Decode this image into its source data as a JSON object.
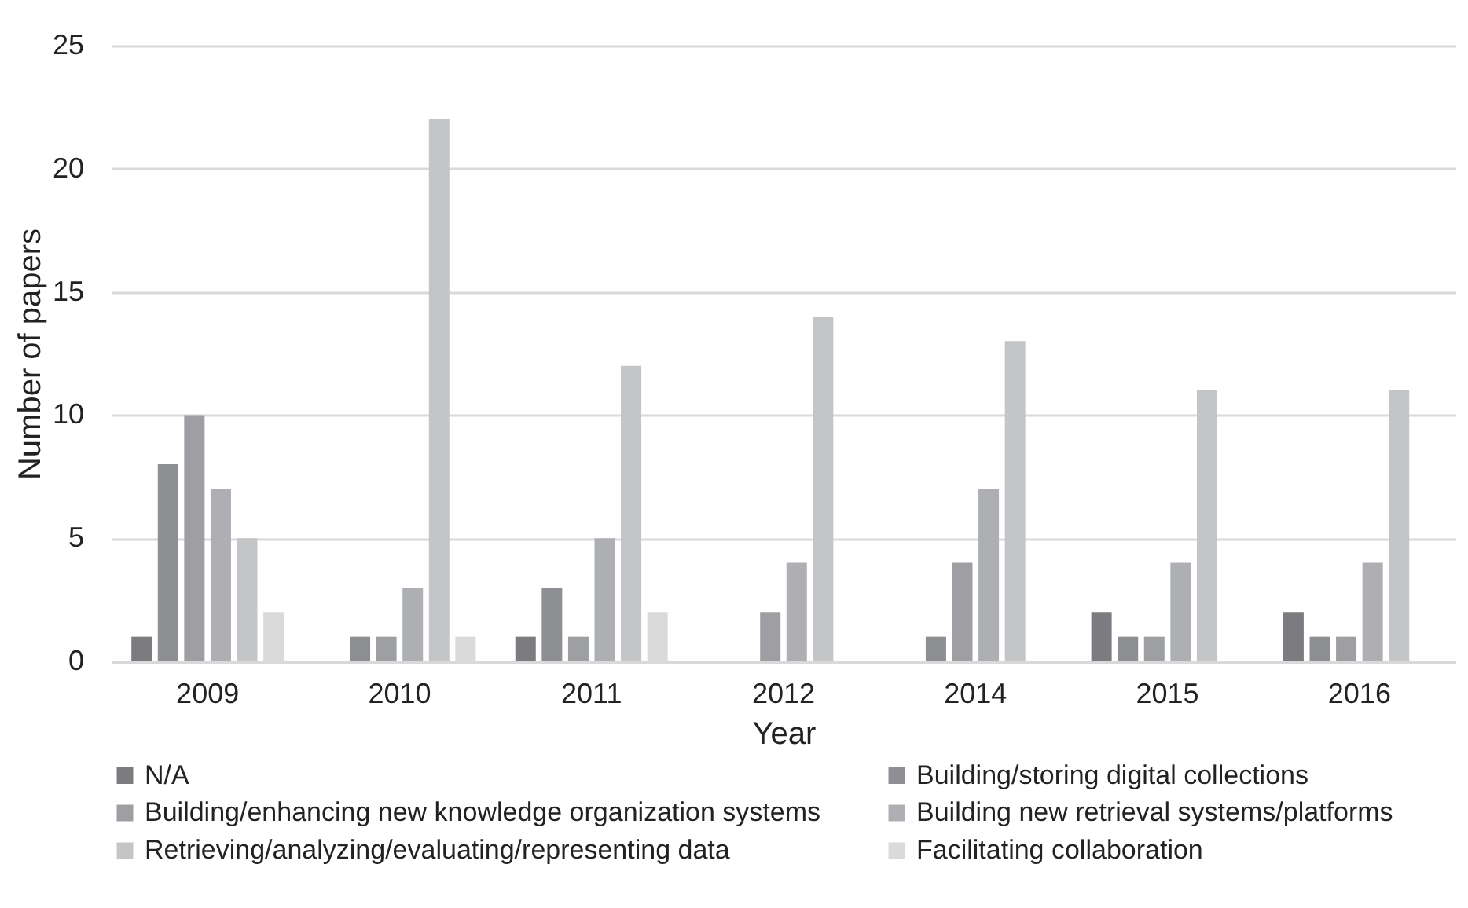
{
  "chart_data": {
    "type": "bar",
    "xlabel": "Year",
    "ylabel": "Number of papers",
    "categories": [
      "2009",
      "2010",
      "2011",
      "2012",
      "2014",
      "2015",
      "2016"
    ],
    "series": [
      {
        "name": "N/A",
        "color": "#7b7c7f",
        "values": [
          1,
          0,
          1,
          0,
          0,
          2,
          2
        ]
      },
      {
        "name": "Building/storing digital collections",
        "color": "#8e8f92",
        "values": [
          8,
          1,
          3,
          0,
          1,
          1,
          1
        ]
      },
      {
        "name": "Building/enhancing new knowledge organization systems",
        "color": "#9e9fa2",
        "values": [
          10,
          1,
          1,
          2,
          4,
          1,
          1
        ]
      },
      {
        "name": "Building new retrieval systems/platforms",
        "color": "#aeafb2",
        "values": [
          7,
          3,
          5,
          4,
          7,
          4,
          4
        ]
      },
      {
        "name": "Retrieving/analyzing/evaluating/representing data",
        "color": "#c4c5c7",
        "values": [
          5,
          22,
          12,
          14,
          13,
          11,
          11
        ]
      },
      {
        "name": "Facilitating collaboration",
        "color": "#d9dadb",
        "values": [
          2,
          1,
          2,
          0,
          0,
          0,
          0
        ]
      }
    ],
    "ylim": [
      0,
      25
    ],
    "yticks": [
      0,
      5,
      10,
      15,
      20,
      25
    ],
    "grid": "y",
    "legend": "bottom"
  }
}
